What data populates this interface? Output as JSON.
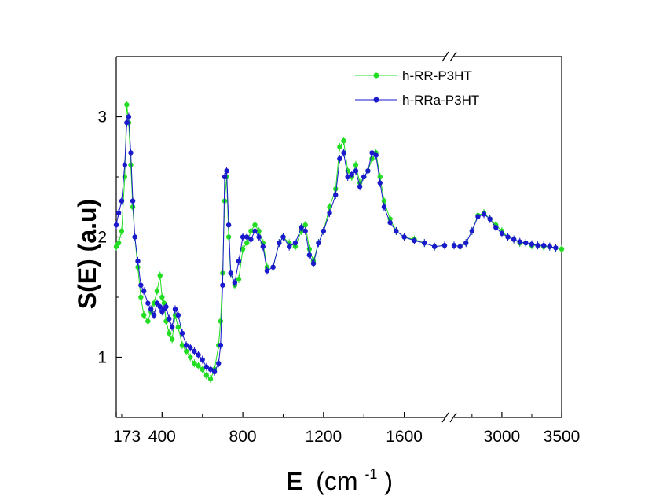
{
  "chart_data": {
    "type": "scatter",
    "title": "",
    "xlabel_main": "E",
    "xlabel_unit": "(cm",
    "xlabel_exp": "-1",
    "xlabel_close": ")",
    "ylabel": "S(E) (a.u)",
    "legend_position": "top-right",
    "x_axis_break": true,
    "ylim": [
      0.5,
      3.5
    ],
    "yticks": [
      {
        "value": 1,
        "label": "1"
      },
      {
        "value": 2,
        "label": "2"
      },
      {
        "value": 3,
        "label": "3"
      }
    ],
    "x_segments": [
      {
        "range": [
          173,
          1800
        ]
      },
      {
        "range": [
          2600,
          3500
        ]
      }
    ],
    "xticks": [
      {
        "value": 173,
        "label": "173"
      },
      {
        "value": 400,
        "label": "400"
      },
      {
        "value": 800,
        "label": "800"
      },
      {
        "value": 1200,
        "label": "1200"
      },
      {
        "value": 1600,
        "label": "1600"
      },
      {
        "value": 3000,
        "label": "3000"
      },
      {
        "value": 3500,
        "label": "3500"
      }
    ],
    "series": [
      {
        "name": "h-RR-P3HT",
        "color": "#22dd22",
        "x": [
          173,
          185,
          200,
          215,
          225,
          235,
          245,
          255,
          265,
          280,
          295,
          310,
          330,
          345,
          360,
          375,
          390,
          400,
          410,
          420,
          435,
          450,
          465,
          480,
          500,
          520,
          540,
          560,
          580,
          600,
          620,
          640,
          660,
          680,
          690,
          700,
          710,
          720,
          730,
          740,
          760,
          780,
          800,
          820,
          840,
          860,
          880,
          900,
          920,
          950,
          980,
          1000,
          1030,
          1060,
          1090,
          1110,
          1130,
          1150,
          1175,
          1200,
          1230,
          1260,
          1280,
          1300,
          1320,
          1340,
          1360,
          1380,
          1400,
          1420,
          1440,
          1460,
          1480,
          1500,
          1530,
          1560,
          1600,
          1650,
          1700,
          1750,
          1800,
          2600,
          2650,
          2700,
          2750,
          2800,
          2850,
          2900,
          2950,
          3000,
          3050,
          3100,
          3150,
          3200,
          3250,
          3300,
          3350,
          3400,
          3450,
          3500
        ],
        "y": [
          1.92,
          1.95,
          2.05,
          2.5,
          3.1,
          2.95,
          2.6,
          2.25,
          2.0,
          1.75,
          1.5,
          1.35,
          1.3,
          1.38,
          1.45,
          1.55,
          1.68,
          1.5,
          1.45,
          1.3,
          1.2,
          1.15,
          1.35,
          1.25,
          1.1,
          1.05,
          1.0,
          0.95,
          0.93,
          0.9,
          0.85,
          0.82,
          0.9,
          1.1,
          1.3,
          1.7,
          2.3,
          2.5,
          2.0,
          1.7,
          1.6,
          1.65,
          1.9,
          1.95,
          2.05,
          2.1,
          2.05,
          1.95,
          1.75,
          1.75,
          1.95,
          2.0,
          1.95,
          1.92,
          2.05,
          2.1,
          1.9,
          1.8,
          1.95,
          2.05,
          2.25,
          2.4,
          2.75,
          2.8,
          2.55,
          2.5,
          2.6,
          2.45,
          2.5,
          2.55,
          2.65,
          2.7,
          2.5,
          2.3,
          2.15,
          2.05,
          2.0,
          1.98,
          1.95,
          1.92,
          1.93,
          1.93,
          1.92,
          1.95,
          2.05,
          2.18,
          2.2,
          2.15,
          2.1,
          2.05,
          2.0,
          1.98,
          1.95,
          1.95,
          1.93,
          1.93,
          1.92,
          1.92,
          1.91,
          1.9
        ]
      },
      {
        "name": "h-RRa-P3HT",
        "color": "#1a1acc",
        "x": [
          173,
          185,
          200,
          215,
          225,
          235,
          245,
          255,
          265,
          280,
          295,
          310,
          330,
          345,
          360,
          375,
          390,
          400,
          410,
          420,
          435,
          450,
          465,
          480,
          500,
          520,
          540,
          560,
          580,
          600,
          620,
          640,
          660,
          680,
          690,
          700,
          710,
          720,
          730,
          740,
          760,
          780,
          800,
          820,
          840,
          860,
          880,
          900,
          920,
          950,
          980,
          1000,
          1030,
          1060,
          1090,
          1110,
          1130,
          1150,
          1175,
          1200,
          1230,
          1260,
          1280,
          1300,
          1320,
          1340,
          1360,
          1380,
          1400,
          1420,
          1440,
          1460,
          1480,
          1500,
          1530,
          1560,
          1600,
          1650,
          1700,
          1750,
          1800,
          2600,
          2650,
          2700,
          2750,
          2800,
          2850,
          2900,
          2950,
          3000,
          3050,
          3100,
          3150,
          3200,
          3250,
          3300,
          3350,
          3400,
          3450
        ],
        "y": [
          2.1,
          2.2,
          2.3,
          2.6,
          2.95,
          3.0,
          2.7,
          2.3,
          2.0,
          1.8,
          1.6,
          1.55,
          1.45,
          1.4,
          1.35,
          1.45,
          1.42,
          1.38,
          1.4,
          1.42,
          1.32,
          1.25,
          1.4,
          1.35,
          1.2,
          1.1,
          1.08,
          1.05,
          1.02,
          0.98,
          0.92,
          0.9,
          0.88,
          0.95,
          1.1,
          1.6,
          2.5,
          2.55,
          2.1,
          1.7,
          1.62,
          1.8,
          2.0,
          2.0,
          1.98,
          2.05,
          2.0,
          1.92,
          1.72,
          1.75,
          1.95,
          2.0,
          1.92,
          1.95,
          2.08,
          2.05,
          1.85,
          1.78,
          1.95,
          2.05,
          2.2,
          2.35,
          2.65,
          2.7,
          2.5,
          2.52,
          2.55,
          2.42,
          2.5,
          2.55,
          2.7,
          2.68,
          2.45,
          2.25,
          2.12,
          2.05,
          2.0,
          1.97,
          1.95,
          1.92,
          1.93,
          1.93,
          1.92,
          1.95,
          2.05,
          2.17,
          2.19,
          2.15,
          2.08,
          2.03,
          2.0,
          1.98,
          1.96,
          1.95,
          1.94,
          1.93,
          1.93,
          1.92,
          1.91
        ]
      }
    ]
  }
}
